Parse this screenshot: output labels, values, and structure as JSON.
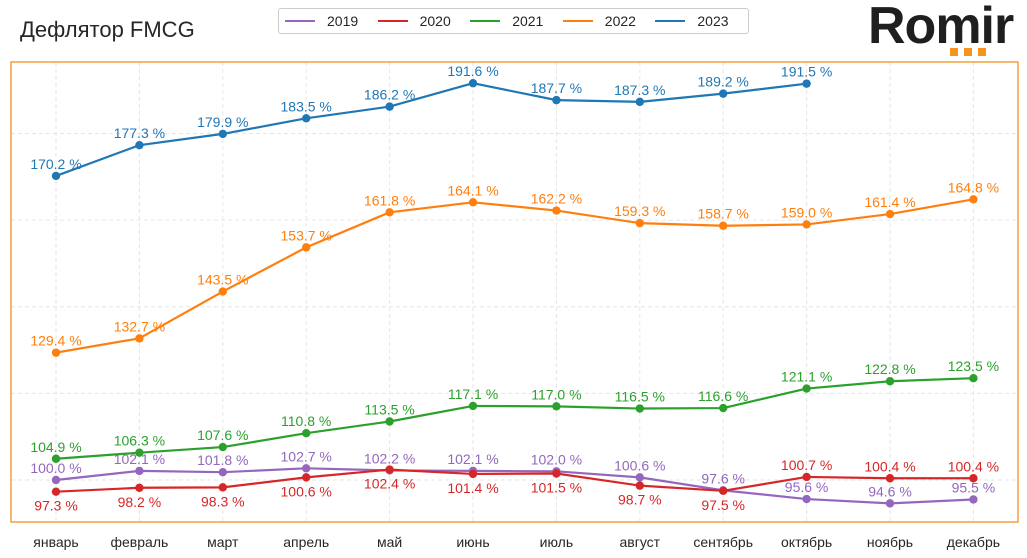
{
  "title": "Дефлятор FMCG",
  "logo": {
    "text": "Romir",
    "accent_color": "#f7941d"
  },
  "legend": [
    {
      "label": "2019",
      "color": "#9467bd"
    },
    {
      "label": "2020",
      "color": "#d62728"
    },
    {
      "label": "2021",
      "color": "#2ca02c"
    },
    {
      "label": "2022",
      "color": "#ff7f0e"
    },
    {
      "label": "2023",
      "color": "#1f77b4"
    }
  ],
  "chart_data": {
    "type": "line",
    "title": "Дефлятор FMCG",
    "xlabel": "",
    "ylabel": "",
    "categories": [
      "январь",
      "февраль",
      "март",
      "апрель",
      "май",
      "июнь",
      "июль",
      "август",
      "сентябрь",
      "октябрь",
      "ноябрь",
      "декабрь"
    ],
    "ylim": [
      90.3,
      196.5
    ],
    "y_gridlines": [
      100,
      120,
      140,
      160,
      180
    ],
    "y_ticks_visible": false,
    "grid": true,
    "legend_position": "top-center",
    "frame_color": "#f0a040",
    "value_suffix": " %",
    "series": [
      {
        "name": "2019",
        "color": "#9467bd",
        "label_pos": "above",
        "values": [
          100.0,
          102.1,
          101.8,
          102.7,
          102.2,
          102.1,
          102.0,
          100.6,
          97.6,
          95.6,
          94.6,
          95.5
        ]
      },
      {
        "name": "2020",
        "color": "#d62728",
        "label_pos": "below",
        "values": [
          97.3,
          98.2,
          98.3,
          100.6,
          102.4,
          101.4,
          101.5,
          98.7,
          97.5,
          100.7,
          100.4,
          100.4
        ],
        "label_pos_overrides": {
          "9": "above",
          "10": "above",
          "11": "above"
        }
      },
      {
        "name": "2021",
        "color": "#2ca02c",
        "label_pos": "above",
        "values": [
          104.9,
          106.3,
          107.6,
          110.8,
          113.5,
          117.1,
          117.0,
          116.5,
          116.6,
          121.1,
          122.8,
          123.5
        ]
      },
      {
        "name": "2022",
        "color": "#ff7f0e",
        "label_pos": "above",
        "values": [
          129.4,
          132.7,
          143.5,
          153.7,
          161.8,
          164.1,
          162.2,
          159.3,
          158.7,
          159.0,
          161.4,
          164.8
        ]
      },
      {
        "name": "2023",
        "color": "#1f77b4",
        "label_pos": "above",
        "values": [
          170.2,
          177.3,
          179.9,
          183.5,
          186.2,
          191.6,
          187.7,
          187.3,
          189.2,
          191.5,
          null,
          null
        ]
      }
    ]
  }
}
